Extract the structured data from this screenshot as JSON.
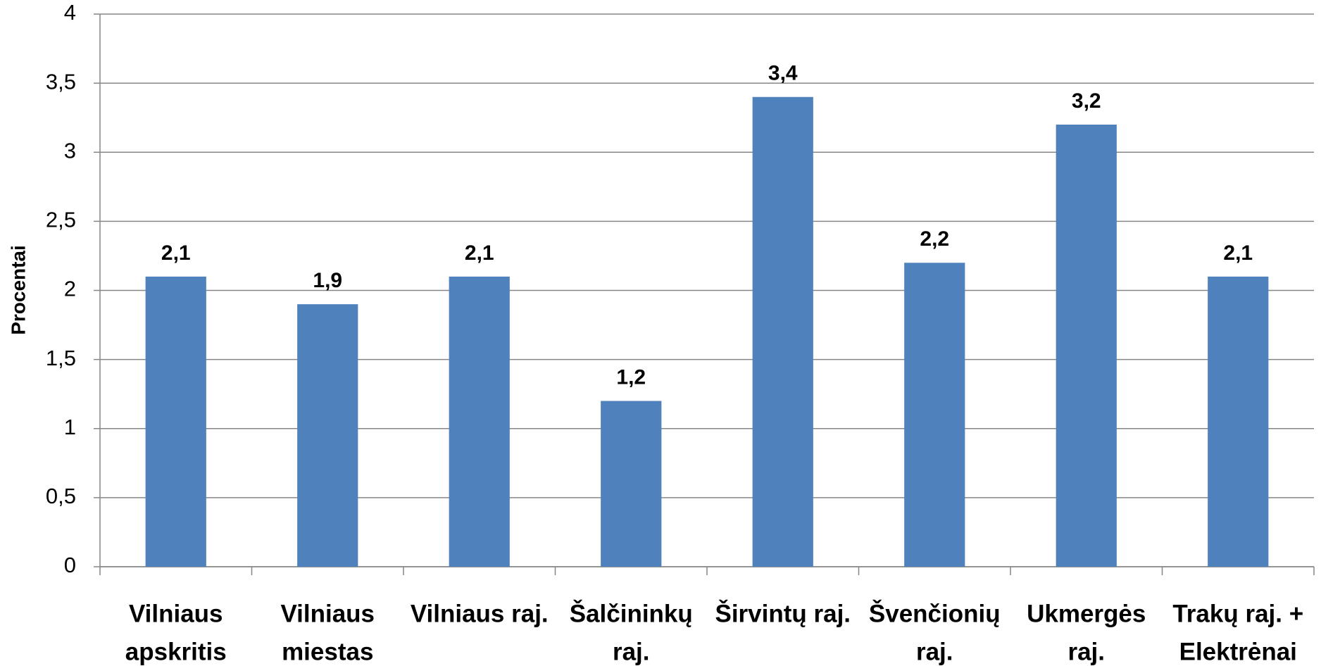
{
  "chart_data": {
    "type": "bar",
    "y_label": "Procentai",
    "categories": [
      [
        "Vilniaus",
        "apskritis"
      ],
      [
        "Vilniaus",
        "miestas"
      ],
      [
        "Vilniaus raj."
      ],
      [
        "Šalčininkų",
        "raj."
      ],
      [
        "Širvintų raj."
      ],
      [
        "Švenčionių",
        "raj."
      ],
      [
        "Ukmergės",
        "raj."
      ],
      [
        "Trakų raj. +",
        "Elektrėnai"
      ]
    ],
    "values": [
      2.1,
      1.9,
      2.1,
      1.2,
      3.4,
      2.2,
      3.2,
      2.1
    ],
    "value_labels": [
      "2,1",
      "1,9",
      "2,1",
      "1,2",
      "3,4",
      "2,2",
      "3,2",
      "2,1"
    ],
    "color": "#4f81bd",
    "ylim": [
      0,
      4
    ],
    "yticks": [
      0,
      {
        "value": 0.5,
        "label": "0,5"
      },
      1,
      {
        "value": 1.5,
        "label": "1,5"
      },
      2,
      {
        "value": 2.5,
        "label": "2,5"
      },
      3,
      {
        "value": 3.5,
        "label": "3,5"
      },
      4
    ],
    "grid": true
  }
}
